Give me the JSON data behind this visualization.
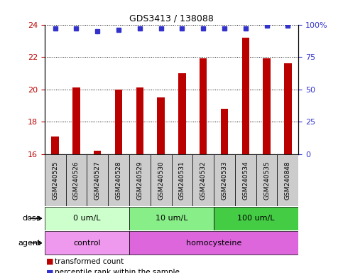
{
  "title": "GDS3413 / 138088",
  "samples": [
    "GSM240525",
    "GSM240526",
    "GSM240527",
    "GSM240528",
    "GSM240529",
    "GSM240530",
    "GSM240531",
    "GSM240532",
    "GSM240533",
    "GSM240534",
    "GSM240535",
    "GSM240848"
  ],
  "red_values": [
    17.1,
    20.1,
    16.2,
    20.0,
    20.1,
    19.5,
    21.0,
    21.9,
    18.8,
    23.2,
    21.9,
    21.6
  ],
  "blue_values": [
    97,
    97,
    95,
    96,
    97,
    97,
    97,
    97,
    97,
    97,
    99,
    99
  ],
  "ylim_left": [
    16,
    24
  ],
  "ylim_right": [
    0,
    100
  ],
  "yticks_left": [
    16,
    18,
    20,
    22,
    24
  ],
  "yticks_right": [
    0,
    25,
    50,
    75,
    100
  ],
  "ytick_labels_right": [
    "0",
    "25",
    "50",
    "75",
    "100%"
  ],
  "red_color": "#bb0000",
  "blue_color": "#3333cc",
  "bar_width": 0.35,
  "dose_groups": [
    {
      "label": "0 um/L",
      "start": 0,
      "end": 4,
      "color": "#ccffcc"
    },
    {
      "label": "10 um/L",
      "start": 4,
      "end": 8,
      "color": "#88ee88"
    },
    {
      "label": "100 um/L",
      "start": 8,
      "end": 12,
      "color": "#44cc44"
    }
  ],
  "agent_groups": [
    {
      "label": "control",
      "start": 0,
      "end": 4,
      "color": "#ee99ee"
    },
    {
      "label": "homocysteine",
      "start": 4,
      "end": 12,
      "color": "#dd66dd"
    }
  ],
  "dose_label": "dose",
  "agent_label": "agent",
  "legend_red": "transformed count",
  "legend_blue": "percentile rank within the sample",
  "sample_bg": "#cccccc",
  "plot_bg": "#ffffff"
}
